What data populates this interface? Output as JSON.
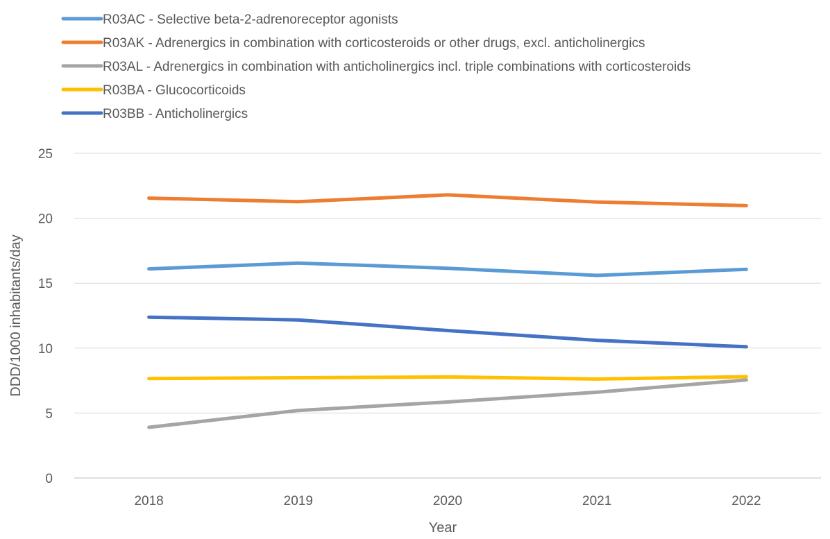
{
  "chart_data": {
    "type": "line",
    "title": "",
    "xlabel": "Year",
    "ylabel": "DDD/1000 inhabitants/day",
    "categories": [
      "2018",
      "2019",
      "2020",
      "2021",
      "2022"
    ],
    "ylim": [
      0,
      25
    ],
    "yticks": [
      0,
      5,
      10,
      15,
      20,
      25
    ],
    "grid": "horizontal",
    "legend_position": "top-left",
    "series": [
      {
        "name": "R03AC - Selective beta-2-adrenoreceptor agonists",
        "color": "#5B9BD5",
        "values": [
          16.1,
          16.55,
          16.15,
          15.6,
          16.07
        ]
      },
      {
        "name": "R03AK - Adrenergics in combination with corticosteroids or other drugs, excl. anticholinergics",
        "color": "#ED7D31",
        "values": [
          21.55,
          21.27,
          21.8,
          21.25,
          20.97
        ]
      },
      {
        "name": "R03AL - Adrenergics in combination with anticholinergics incl. triple combinations with corticosteroids",
        "color": "#A5A5A5",
        "values": [
          3.9,
          5.2,
          5.85,
          6.6,
          7.55
        ]
      },
      {
        "name": "R03BA - Glucocorticoids",
        "color": "#FFC000",
        "values": [
          7.65,
          7.72,
          7.78,
          7.62,
          7.8
        ]
      },
      {
        "name": "R03BB - Anticholinergics",
        "color": "#4472C4",
        "values": [
          12.38,
          12.17,
          11.35,
          10.6,
          10.1
        ]
      }
    ]
  }
}
